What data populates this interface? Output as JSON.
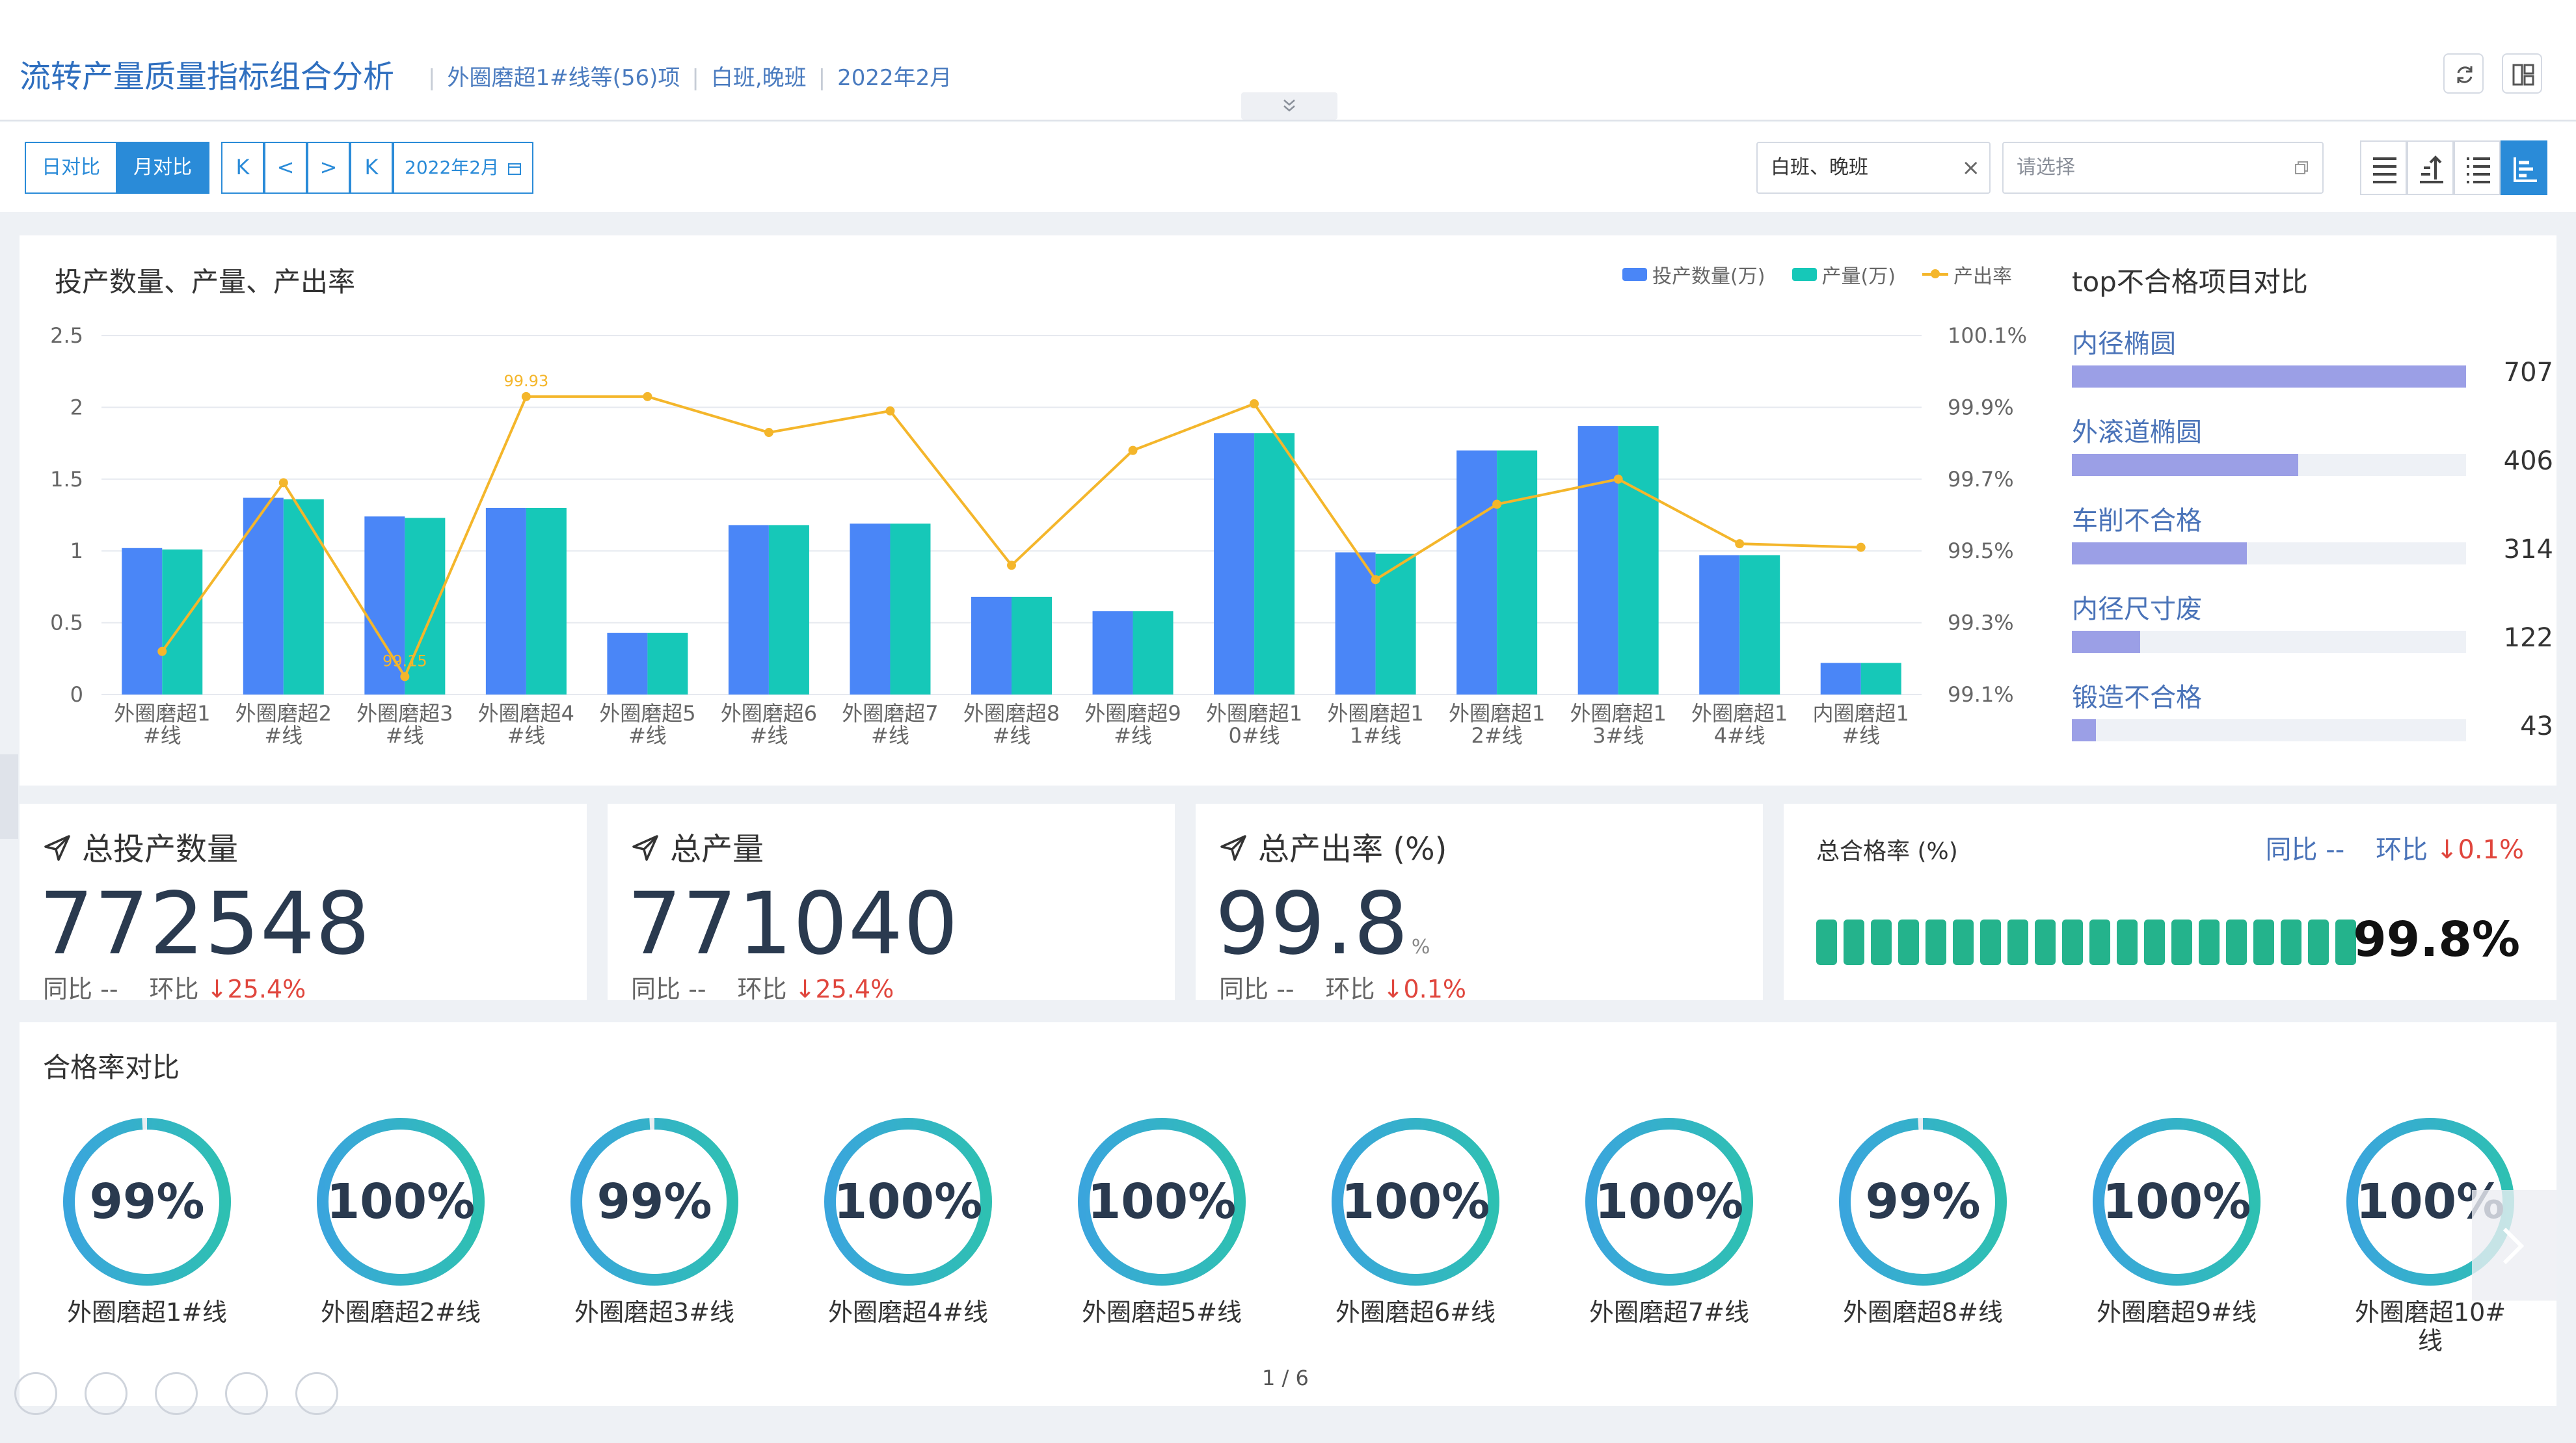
{
  "header": {
    "title": "流转产量质量指标组合分析",
    "filters": [
      "外圈磨超1#线等(56)项",
      "白班,晚班",
      "2022年2月"
    ]
  },
  "toolbar": {
    "day_compare": "日对比",
    "month_compare": "月对比",
    "nav": [
      "K",
      "<",
      ">",
      "K"
    ],
    "date": "2022年2月",
    "shift_select": "白班、晚班",
    "placeholder": "请选择"
  },
  "chart_data": {
    "type": "bar",
    "title": "投产数量、产量、产出率",
    "categories": [
      "外圈磨超1#线",
      "外圈磨超2#线",
      "外圈磨超3#线",
      "外圈磨超4#线",
      "外圈磨超5#线",
      "外圈磨超6#线",
      "外圈磨超7#线",
      "外圈磨超8#线",
      "外圈磨超9#线",
      "外圈磨超10#线",
      "外圈磨超11#线",
      "外圈磨超12#线",
      "外圈磨超13#线",
      "外圈磨超14#线",
      "内圈磨超1#线"
    ],
    "category_lines": [
      [
        "外圈磨超1",
        "#线"
      ],
      [
        "外圈磨超2",
        "#线"
      ],
      [
        "外圈磨超3",
        "#线"
      ],
      [
        "外圈磨超4",
        "#线"
      ],
      [
        "外圈磨超5",
        "#线"
      ],
      [
        "外圈磨超6",
        "#线"
      ],
      [
        "外圈磨超7",
        "#线"
      ],
      [
        "外圈磨超8",
        "#线"
      ],
      [
        "外圈磨超9",
        "#线"
      ],
      [
        "外圈磨超1",
        "0#线"
      ],
      [
        "外圈磨超1",
        "1#线"
      ],
      [
        "外圈磨超1",
        "2#线"
      ],
      [
        "外圈磨超1",
        "3#线"
      ],
      [
        "外圈磨超1",
        "4#线"
      ],
      [
        "内圈磨超1",
        "#线"
      ]
    ],
    "series": [
      {
        "name": "投产数量(万)",
        "color": "#4a86f7",
        "axis": "left",
        "values": [
          1.02,
          1.37,
          1.24,
          1.3,
          0.43,
          1.18,
          1.19,
          0.68,
          0.58,
          1.82,
          0.99,
          1.7,
          1.87,
          0.97,
          0.22
        ]
      },
      {
        "name": "产量(万)",
        "color": "#16c8b8",
        "axis": "left",
        "values": [
          1.01,
          1.36,
          1.23,
          1.3,
          0.43,
          1.18,
          1.19,
          0.68,
          0.58,
          1.82,
          0.98,
          1.7,
          1.87,
          0.97,
          0.22
        ]
      },
      {
        "name": "产出率",
        "color": "#f4b62b",
        "axis": "right",
        "type": "line",
        "values": [
          99.22,
          99.69,
          99.15,
          99.93,
          99.93,
          99.83,
          99.89,
          99.46,
          99.78,
          99.91,
          99.42,
          99.63,
          99.7,
          99.52,
          99.51
        ]
      }
    ],
    "data_labels": [
      {
        "index": 2,
        "text": "99.15"
      },
      {
        "index": 3,
        "text": "99.93"
      }
    ],
    "yleft_ticks": [
      "2.5",
      "2",
      "1.5",
      "1",
      "0.5",
      "0"
    ],
    "yleft_lim": [
      0,
      2.5
    ],
    "yright_ticks": [
      "100.1%",
      "99.9%",
      "99.7%",
      "99.5%",
      "99.3%",
      "99.1%"
    ],
    "yright_lim": [
      99.1,
      100.1
    ],
    "grid": true,
    "legend": "top-right"
  },
  "top_failures": {
    "title": "top不合格项目对比",
    "max": 707,
    "items": [
      {
        "name": "内径椭圆",
        "value": "707",
        "num": 707
      },
      {
        "name": "外滚道椭圆",
        "value": "406",
        "num": 406
      },
      {
        "name": "车削不合格",
        "value": "314",
        "num": 314
      },
      {
        "name": "内径尺寸废",
        "value": "122",
        "num": 122
      },
      {
        "name": "锻造不合格",
        "value": "43",
        "num": 43
      }
    ]
  },
  "kpis": [
    {
      "title": "总投产数量",
      "value": "772548",
      "unit": "",
      "yoy_label": "同比",
      "yoy": "--",
      "mom_label": "环比",
      "mom": "↓25.4%"
    },
    {
      "title": "总产量",
      "value": "771040",
      "unit": "",
      "yoy_label": "同比",
      "yoy": "--",
      "mom_label": "环比",
      "mom": "↓25.4%"
    },
    {
      "title": "总产出率 (%)",
      "value": "99.8",
      "unit": "%",
      "yoy_label": "同比",
      "yoy": "--",
      "mom_label": "环比",
      "mom": "↓0.1%"
    }
  ],
  "pass_rate": {
    "label": "总合格率 (%)",
    "yoy_label": "同比",
    "yoy": "--",
    "mom_label": "环比",
    "mom": "↓0.1%",
    "value": "99.8%",
    "fraction": 0.998
  },
  "rings_section": {
    "title": "合格率对比",
    "items": [
      {
        "value": "99%",
        "label": "外圈磨超1#线",
        "fraction": 0.99
      },
      {
        "value": "100%",
        "label": "外圈磨超2#线",
        "fraction": 1.0
      },
      {
        "value": "99%",
        "label": "外圈磨超3#线",
        "fraction": 0.99
      },
      {
        "value": "100%",
        "label": "外圈磨超4#线",
        "fraction": 1.0
      },
      {
        "value": "100%",
        "label": "外圈磨超5#线",
        "fraction": 1.0
      },
      {
        "value": "100%",
        "label": "外圈磨超6#线",
        "fraction": 1.0
      },
      {
        "value": "100%",
        "label": "外圈磨超7#线",
        "fraction": 1.0
      },
      {
        "value": "99%",
        "label": "外圈磨超8#线",
        "fraction": 0.99
      },
      {
        "value": "100%",
        "label": "外圈磨超9#线",
        "fraction": 1.0
      },
      {
        "value": "100%",
        "label": "外圈磨超10#线",
        "fraction": 1.0
      }
    ],
    "pager": "1 / 6"
  },
  "colors": {
    "primary": "#2a8bd8",
    "bar1": "#4a86f7",
    "bar2": "#16c8b8",
    "line": "#f4b62b",
    "red": "#e0463d",
    "green": "#24b38c"
  }
}
